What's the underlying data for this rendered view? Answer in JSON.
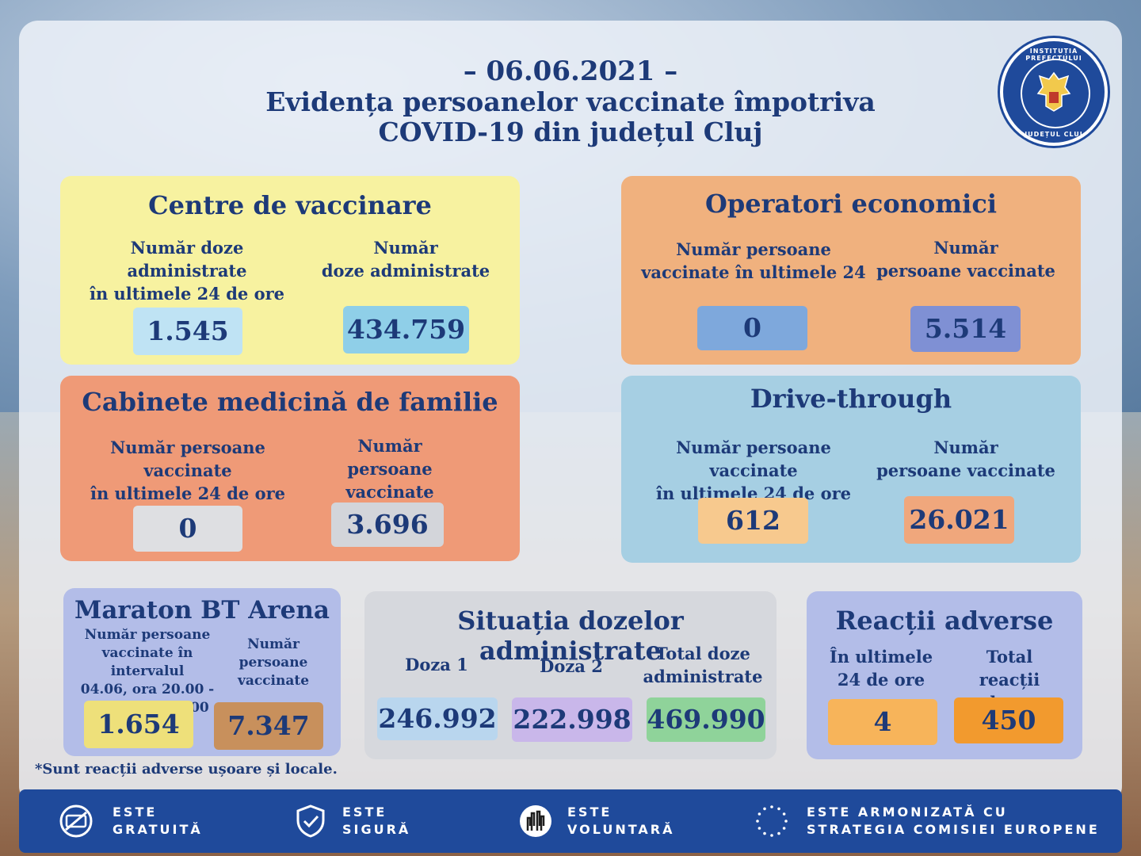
{
  "header": {
    "date": "– 06.06.2021 –",
    "title_line1": "Evidența persoanelor vaccinate împotriva",
    "title_line2": "COVID-19 din județul Cluj"
  },
  "seal": {
    "top_text": "INSTITUȚIA PREFECTULUI",
    "bottom_text": "JUDEȚUL CLUJ"
  },
  "centre": {
    "title": "Centre de vaccinare",
    "label_24h_1": "Număr doze administrate",
    "label_24h_2": "în ultimele 24 de ore",
    "label_total_1": "Număr",
    "label_total_2": "doze administrate",
    "value_24h": "1.545",
    "value_total": "434.759"
  },
  "operatori": {
    "title": "Operatori economici",
    "label_24h_1": "Număr persoane",
    "label_24h_2": "vaccinate în ultimele 24",
    "label_total_1": "Număr",
    "label_total_2": "persoane vaccinate",
    "value_24h": "0",
    "value_total": "5.514"
  },
  "cabinete": {
    "title": "Cabinete medicină de familie",
    "label_24h_1": "Număr persoane vaccinate",
    "label_24h_2": "în ultimele 24 de ore",
    "label_total_1": "Număr",
    "label_total_2": "persoane vaccinate",
    "value_24h": "0",
    "value_total": "3.696"
  },
  "drive": {
    "title": "Drive-through",
    "label_24h_1": "Număr persoane vaccinate",
    "label_24h_2": "în ultimele 24 de ore",
    "label_total_1": "Număr",
    "label_total_2": "persoane vaccinate",
    "value_24h": "612",
    "value_total": "26.021"
  },
  "maraton": {
    "title": "Maraton BT Arena",
    "label_interval_1": "Număr persoane",
    "label_interval_2": "vaccinate în intervalul",
    "label_interval_3": "04.06, ora 20.00 -",
    "label_interval_4": "05.06, ora 20.00",
    "label_total_1": "Număr",
    "label_total_2": "persoane",
    "label_total_3": "vaccinate",
    "value_interval": "1.654",
    "value_total": "7.347"
  },
  "situatia": {
    "title": "Situația dozelor administrate",
    "doza1_label": "Doza 1",
    "doza2_label": "Doza 2",
    "total_label_1": "Total doze",
    "total_label_2": "administrate",
    "doza1_value": "246.992",
    "doza2_value": "222.998",
    "total_value": "469.990"
  },
  "reactii": {
    "title": "Reacții adverse",
    "label_24h_1": "În ultimele",
    "label_24h_2": "24 de ore",
    "label_total_1": "Total",
    "label_total_2": "reacții adverse",
    "value_24h": "4",
    "value_total": "450"
  },
  "note": "*Sunt reacții adverse ușoare și locale.",
  "footer": {
    "item1_line1": "ESTE",
    "item1_line2": "GRATUITĂ",
    "item2_line1": "ESTE",
    "item2_line2": "SIGURĂ",
    "item3_line1": "ESTE",
    "item3_line2": "VOLUNTARĂ",
    "item4_line1": "ESTE ARMONIZATĂ CU",
    "item4_line2": "STRATEGIA COMISIEI EUROPENE"
  },
  "colors": {
    "navy": "#1d3a78",
    "footer_blue": "#1f4a9b",
    "yellow": "#f7f2a0",
    "orange": "#f0b17e",
    "salmon": "#ef9a77",
    "blue": "#a6cfe3",
    "purple": "#b3bde8"
  }
}
